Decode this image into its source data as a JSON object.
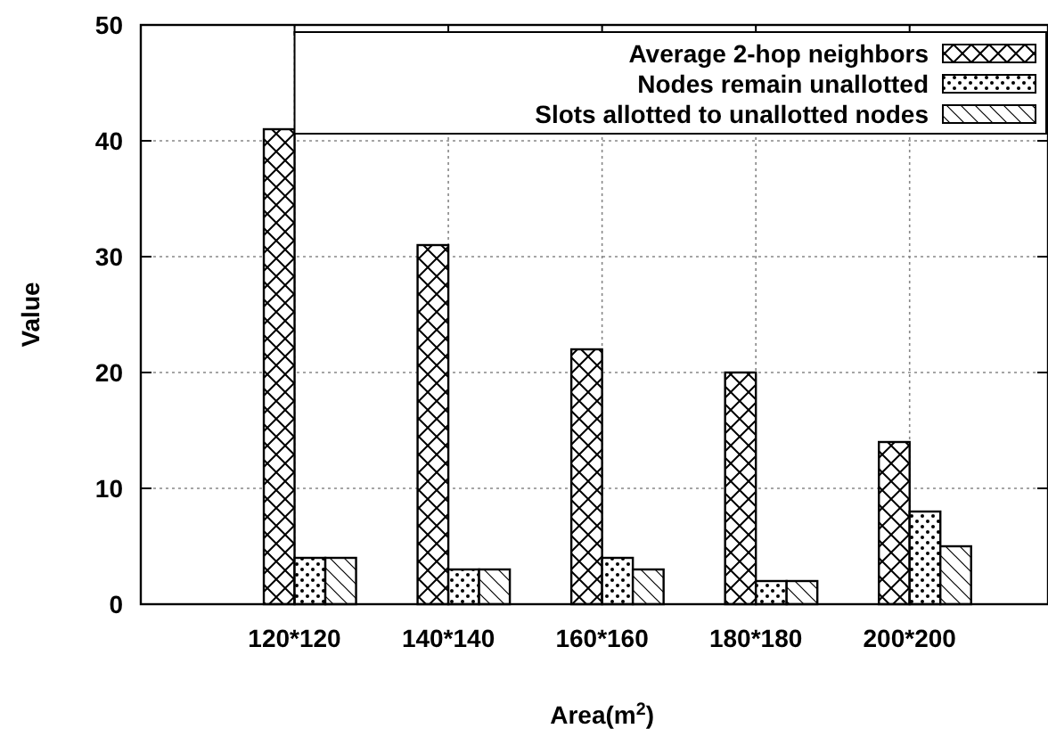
{
  "chart_data": {
    "type": "bar",
    "xlabel": "Area(m$^{2}$)",
    "ylabel": "Value",
    "categories": [
      "120*120",
      "140*140",
      "160*160",
      "180*180",
      "200*200"
    ],
    "series": [
      {
        "name": "Average 2-hop neighbors",
        "color": "#000000",
        "values": [
          41,
          31,
          22,
          20,
          14
        ]
      },
      {
        "name": "Nodes remain unallotted",
        "color": "#000000",
        "values": [
          4,
          3,
          4,
          2,
          8
        ]
      },
      {
        "name": "Slots allotted to unallotted nodes",
        "color": "#000000",
        "values": [
          4,
          3,
          3,
          2,
          5
        ]
      }
    ],
    "ylim": [
      0,
      50
    ],
    "yticks": [
      0,
      10,
      20,
      30,
      40,
      50
    ],
    "grid": true,
    "legend": "top right"
  }
}
